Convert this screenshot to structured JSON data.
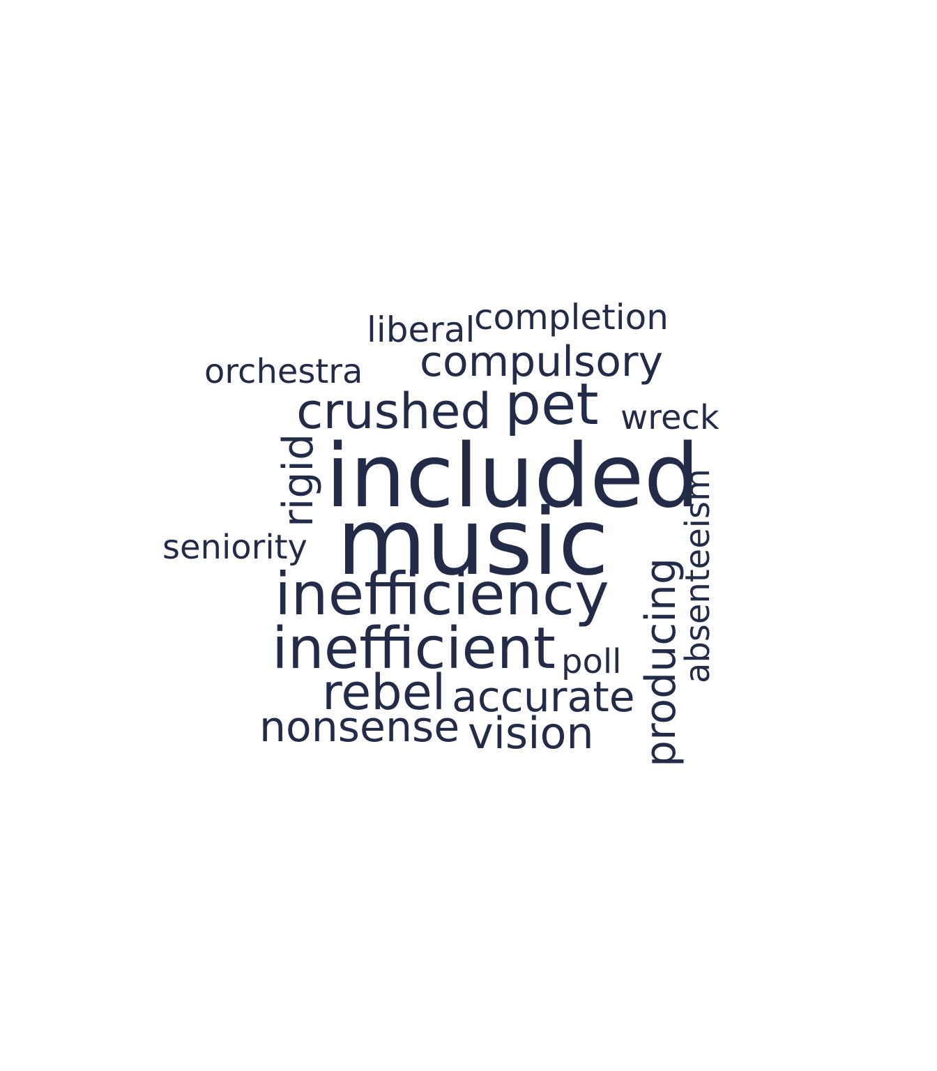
{
  "cloud": {
    "color": "#222c48",
    "words": {
      "liberal": "liberal",
      "completion": "completion",
      "orchestra": "orchestra",
      "compulsory": "compulsory",
      "crushed": "crushed",
      "pet": "pet",
      "wreck": "wreck",
      "included": "included",
      "rigid": "rigid",
      "seniority": "seniority",
      "music": "music",
      "inefficiency": "inefficiency",
      "absenteeism": "absenteeism",
      "producing": "producing",
      "inefficient": "inefficient",
      "poll": "poll",
      "rebel": "rebel",
      "accurate": "accurate",
      "nonsense": "nonsense",
      "vision": "vision"
    }
  }
}
